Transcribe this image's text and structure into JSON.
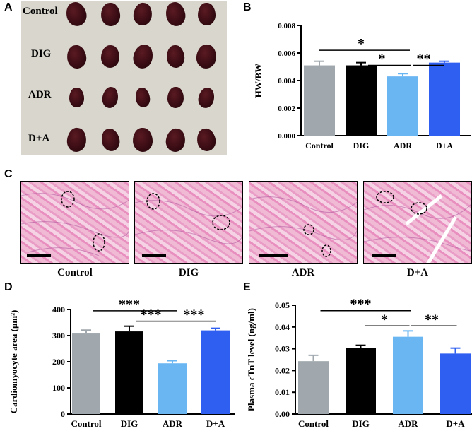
{
  "panels": {
    "A": "A",
    "B": "B",
    "C": "C",
    "D": "D",
    "E": "E"
  },
  "panel_a": {
    "row_labels": [
      "Control",
      "DIG",
      "ADR",
      "D+A"
    ]
  },
  "panel_c": {
    "labels": [
      "Control",
      "DIG",
      "ADR",
      "D+A"
    ]
  },
  "significance": {
    "b": [
      "*",
      "*",
      "**"
    ],
    "d": [
      "***",
      "***",
      "***"
    ],
    "e": [
      "***",
      "*",
      "**"
    ]
  },
  "chart_data": [
    {
      "id": "B",
      "type": "bar",
      "categories": [
        "Control",
        "DIG",
        "ADR",
        "D+A"
      ],
      "values": [
        0.0051,
        0.0051,
        0.0043,
        0.0053
      ],
      "errors": [
        0.0003,
        0.0002,
        0.0002,
        0.0001
      ],
      "colors": [
        "#a0a8ae",
        "#000000",
        "#6ab6f2",
        "#2f5ff0"
      ],
      "ylabel": "HW/BW",
      "ylim": [
        0,
        0.008
      ],
      "ticks": [
        0.0,
        0.002,
        0.004,
        0.006,
        0.008
      ],
      "tick_labels": [
        "0.000",
        "0.002",
        "0.004",
        "0.006",
        "0.008"
      ]
    },
    {
      "id": "D",
      "type": "bar",
      "categories": [
        "Control",
        "DIG",
        "ADR",
        "D+A"
      ],
      "values": [
        308,
        316,
        194,
        320
      ],
      "errors": [
        13,
        20,
        10,
        8
      ],
      "colors": [
        "#a0a8ae",
        "#000000",
        "#6ab6f2",
        "#2f5ff0"
      ],
      "ylabel": "Cardiomyocyte area (μm²)",
      "ylim": [
        0,
        400
      ],
      "ticks": [
        0,
        100,
        200,
        300,
        400
      ],
      "tick_labels": [
        "0",
        "100",
        "200",
        "300",
        "400"
      ]
    },
    {
      "id": "E",
      "type": "bar",
      "categories": [
        "Control",
        "DIG",
        "ADR",
        "D+A"
      ],
      "values": [
        0.0243,
        0.0302,
        0.0355,
        0.0278
      ],
      "errors": [
        0.0027,
        0.0014,
        0.0027,
        0.0025
      ],
      "colors": [
        "#a0a8ae",
        "#000000",
        "#6ab6f2",
        "#2f5ff0"
      ],
      "ylabel": "Plasma cTnT level (ng/ml)",
      "ylim": [
        0,
        0.05
      ],
      "ticks": [
        0.0,
        0.01,
        0.02,
        0.03,
        0.04,
        0.05
      ],
      "tick_labels": [
        "0.00",
        "0.01",
        "0.02",
        "0.03",
        "0.04",
        "0.05"
      ]
    }
  ]
}
